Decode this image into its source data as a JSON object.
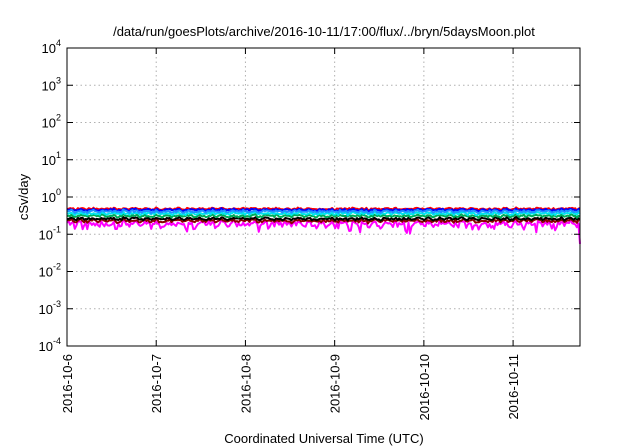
{
  "chart_data": {
    "type": "line",
    "title": "/data/run/goesPlots/archive/2016-10-11/17:00/flux/../bryn/5daysMoon.plot",
    "xlabel": "Coordinated Universal Time (UTC)",
    "ylabel": "cSv/day",
    "y_scale": "log",
    "ylim": [
      0.0001,
      10000
    ],
    "xlim": [
      "2016-10-06",
      "2016-10-11 18:00"
    ],
    "grid": true,
    "legend": "none",
    "x_ticks": [
      "2016-10-6",
      "2016-10-7",
      "2016-10-8",
      "2016-10-9",
      "2016-10-10",
      "2016-10-11"
    ],
    "y_ticks": [
      {
        "value": 0.0001,
        "base": "10",
        "exp": "-4"
      },
      {
        "value": 0.001,
        "base": "10",
        "exp": "-3"
      },
      {
        "value": 0.01,
        "base": "10",
        "exp": "-2"
      },
      {
        "value": 0.1,
        "base": "10",
        "exp": "-1"
      },
      {
        "value": 1,
        "base": "10",
        "exp": "0"
      },
      {
        "value": 10,
        "base": "10",
        "exp": "1"
      },
      {
        "value": 100,
        "base": "10",
        "exp": "2"
      },
      {
        "value": 1000,
        "base": "10",
        "exp": "3"
      },
      {
        "value": 10000,
        "base": "10",
        "exp": "4"
      }
    ],
    "series": [
      {
        "color": "#ff00ff",
        "level": 0.19,
        "amplitude": 0.06,
        "dips": true
      },
      {
        "color": "#8b0000",
        "level": 0.23,
        "amplitude": 0.035,
        "dips": false
      },
      {
        "color": "#000000",
        "level": 0.26,
        "amplitude": 0.035,
        "dips": false
      },
      {
        "color": "#00aa55",
        "level": 0.31,
        "amplitude": 0.04,
        "dips": false
      },
      {
        "color": "#00e5ee",
        "level": 0.36,
        "amplitude": 0.045,
        "dips": false
      },
      {
        "color": "#ff0000",
        "level": 0.48,
        "amplitude": 0.05,
        "dips": false
      },
      {
        "color": "#0000ff",
        "level": 0.45,
        "amplitude": 0.05,
        "dips": false
      },
      {
        "color": "#1e90ff",
        "level": 0.41,
        "amplitude": 0.05,
        "dips": false
      }
    ]
  }
}
